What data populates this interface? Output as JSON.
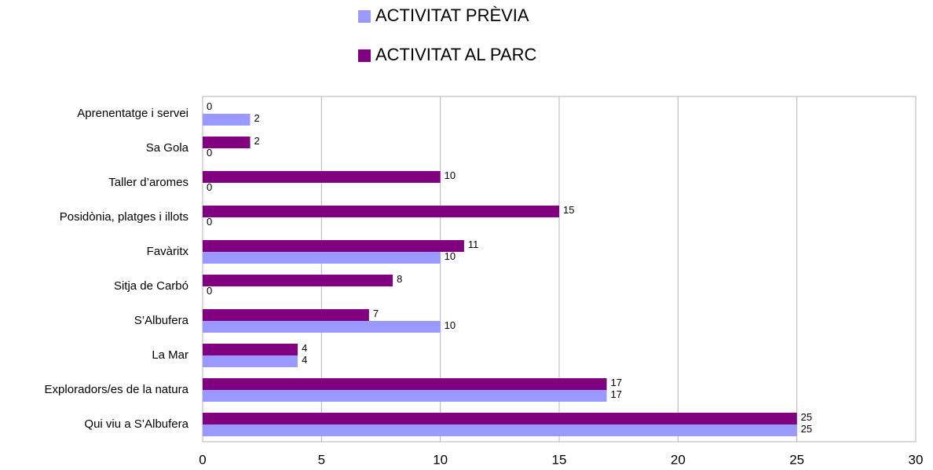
{
  "chart_data": {
    "type": "hbar",
    "categories": [
      "Aprenentatge i servei",
      "Sa Gola",
      "Taller d’aromes",
      "Posidònia, platges i illots",
      "Favàritx",
      "Sitja de Carbó",
      "S’Albufera",
      "La Mar",
      "Exploradors/es de la natura",
      "Qui viu a S’Albufera"
    ],
    "series": [
      {
        "name": "ACTIVITAT PRÈVIA",
        "color": "#9999ff",
        "values": [
          2,
          0,
          0,
          0,
          10,
          0,
          10,
          4,
          17,
          25
        ]
      },
      {
        "name": "ACTIVITAT AL PARC",
        "color": "#800080",
        "values": [
          0,
          2,
          10,
          15,
          11,
          8,
          7,
          4,
          17,
          25
        ]
      }
    ],
    "xlim": [
      0,
      30
    ],
    "xticks": [
      0,
      5,
      10,
      15,
      20,
      25,
      30
    ],
    "grid": true,
    "legend": "top"
  }
}
